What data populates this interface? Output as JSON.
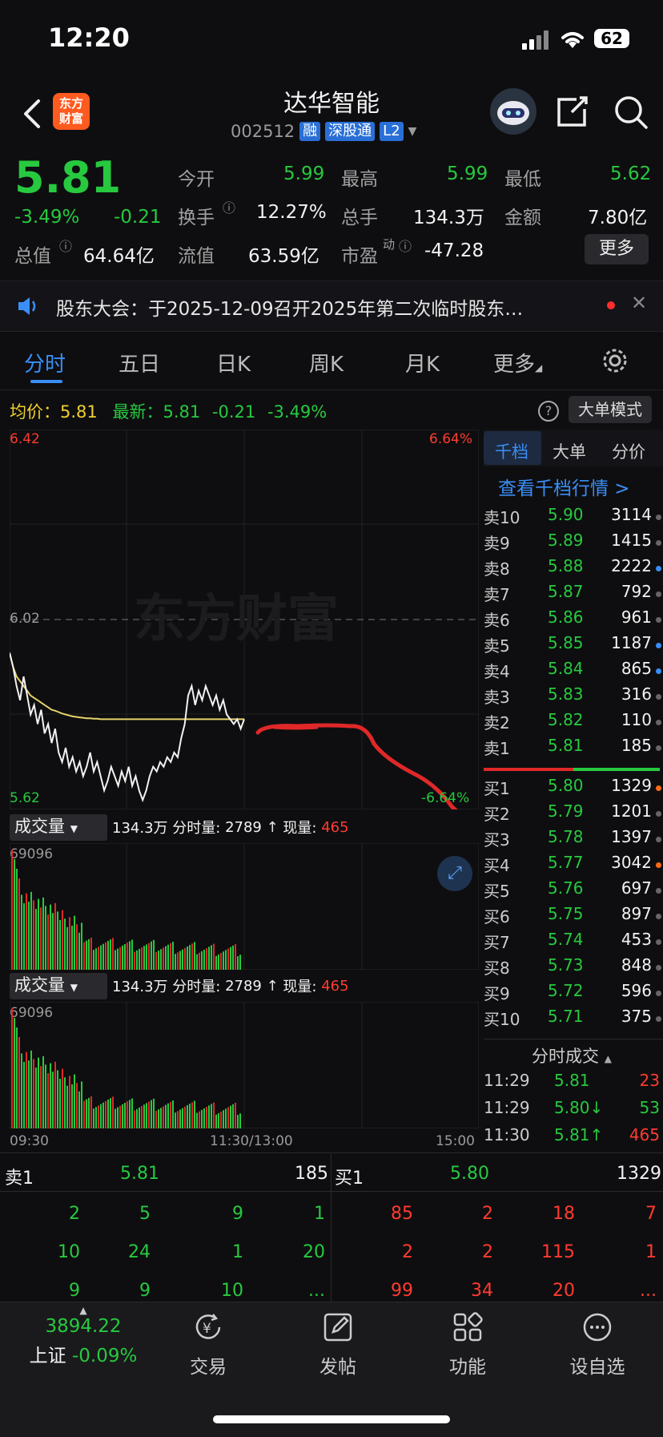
{
  "status": {
    "time": "12:20",
    "battery": "62"
  },
  "header": {
    "name": "达华智能",
    "code": "002512",
    "tags": [
      "融",
      "深股通",
      "L2"
    ],
    "logo_line1": "东方",
    "logo_line2": "财富"
  },
  "quote": {
    "price": "5.81",
    "change_pct": "-3.49%",
    "change": "-0.21",
    "open_label": "今开",
    "open": "5.99",
    "high_label": "最高",
    "high": "5.99",
    "low_label": "最低",
    "low": "5.62",
    "turnover_label": "换手",
    "turnover": "12.27%",
    "volume_label": "总手",
    "volume": "134.3万",
    "amount_label": "金额",
    "amount": "7.80亿",
    "mktcap_label": "总值",
    "mktcap": "64.64亿",
    "float_label": "流值",
    "float": "63.59亿",
    "pe_label": "市盈",
    "pe_sup": "动",
    "pe": "-47.28",
    "more": "更多"
  },
  "notice": {
    "text": "股东大会：于2025-12-09召开2025年第二次临时股东…"
  },
  "tabs": [
    "分时",
    "五日",
    "日K",
    "周K",
    "月K",
    "更多"
  ],
  "info": {
    "avg_label": "均价：",
    "avg": "5.81",
    "last_label": "最新：",
    "last": "5.81",
    "chg": "-0.21",
    "pct": "-3.49%",
    "mode_button": "大单模式"
  },
  "chart_data": {
    "type": "line",
    "title": "",
    "y_top": "6.42",
    "y_mid": "6.02",
    "y_bottom": "5.62",
    "pct_top": "6.64%",
    "pct_bottom": "-6.64%",
    "watermark": "东方财富",
    "x_labels": [
      "09:30",
      "11:30/13:00",
      "15:00"
    ],
    "ylim": [
      5.62,
      6.42
    ],
    "price": [
      5.95,
      5.92,
      5.88,
      5.85,
      5.9,
      5.86,
      5.82,
      5.84,
      5.8,
      5.83,
      5.78,
      5.8,
      5.76,
      5.79,
      5.74,
      5.72,
      5.75,
      5.71,
      5.73,
      5.7,
      5.72,
      5.69,
      5.71,
      5.74,
      5.7,
      5.72,
      5.69,
      5.66,
      5.68,
      5.71,
      5.69,
      5.67,
      5.7,
      5.68,
      5.71,
      5.67,
      5.69,
      5.66,
      5.64,
      5.66,
      5.69,
      5.71,
      5.7,
      5.72,
      5.71,
      5.73,
      5.72,
      5.74,
      5.73,
      5.77,
      5.8,
      5.86,
      5.88,
      5.84,
      5.87,
      5.85,
      5.88,
      5.86,
      5.84,
      5.86,
      5.83,
      5.85,
      5.82,
      5.81,
      5.8,
      5.81,
      5.79,
      5.81
    ],
    "average": [
      5.95,
      5.92,
      5.9,
      5.89,
      5.88,
      5.87,
      5.86,
      5.855,
      5.85,
      5.845,
      5.84,
      5.835,
      5.83,
      5.828,
      5.825,
      5.822,
      5.82,
      5.818,
      5.816,
      5.815,
      5.814,
      5.813,
      5.812,
      5.812,
      5.811,
      5.811,
      5.81,
      5.81,
      5.81,
      5.81,
      5.81,
      5.81,
      5.81,
      5.81,
      5.81,
      5.81,
      5.81,
      5.81,
      5.81,
      5.81,
      5.81,
      5.81,
      5.81,
      5.81,
      5.81,
      5.81,
      5.81,
      5.81,
      5.81,
      5.81,
      5.81,
      5.81,
      5.81,
      5.81,
      5.81,
      5.81,
      5.81,
      5.81,
      5.81,
      5.81,
      5.81,
      5.81,
      5.81,
      5.81,
      5.81,
      5.81,
      5.81,
      5.81
    ],
    "volume_max": "69096"
  },
  "volume_panel": {
    "selector": "成交量",
    "total": "134.3万",
    "minute_label": "分时量:",
    "minute": "2789",
    "now_label": "现量:",
    "now": "465"
  },
  "orderbook": {
    "tabs": [
      "千档",
      "大单",
      "分价"
    ],
    "link": "查看千档行情 >",
    "asks": [
      {
        "label": "卖10",
        "price": "5.90",
        "vol": "3114",
        "dot": "#666"
      },
      {
        "label": "卖9",
        "price": "5.89",
        "vol": "1415",
        "dot": "#666"
      },
      {
        "label": "卖8",
        "price": "5.88",
        "vol": "2222",
        "dot": "#3a8ef6"
      },
      {
        "label": "卖7",
        "price": "5.87",
        "vol": "792",
        "dot": "#666"
      },
      {
        "label": "卖6",
        "price": "5.86",
        "vol": "961",
        "dot": "#666"
      },
      {
        "label": "卖5",
        "price": "5.85",
        "vol": "1187",
        "dot": "#3a8ef6"
      },
      {
        "label": "卖4",
        "price": "5.84",
        "vol": "865",
        "dot": "#3a8ef6"
      },
      {
        "label": "卖3",
        "price": "5.83",
        "vol": "316",
        "dot": "#666"
      },
      {
        "label": "卖2",
        "price": "5.82",
        "vol": "110",
        "dot": "#666"
      },
      {
        "label": "卖1",
        "price": "5.81",
        "vol": "185",
        "dot": "#666"
      }
    ],
    "bids": [
      {
        "label": "买1",
        "price": "5.80",
        "vol": "1329",
        "dot": "#ff6a1a"
      },
      {
        "label": "买2",
        "price": "5.79",
        "vol": "1201",
        "dot": "#666"
      },
      {
        "label": "买3",
        "price": "5.78",
        "vol": "1397",
        "dot": "#666"
      },
      {
        "label": "买4",
        "price": "5.77",
        "vol": "3042",
        "dot": "#ff6a1a"
      },
      {
        "label": "买5",
        "price": "5.76",
        "vol": "697",
        "dot": "#666"
      },
      {
        "label": "买6",
        "price": "5.75",
        "vol": "897",
        "dot": "#666"
      },
      {
        "label": "买7",
        "price": "5.74",
        "vol": "453",
        "dot": "#666"
      },
      {
        "label": "买8",
        "price": "5.73",
        "vol": "848",
        "dot": "#666"
      },
      {
        "label": "买9",
        "price": "5.72",
        "vol": "596",
        "dot": "#666"
      },
      {
        "label": "买10",
        "price": "5.71",
        "vol": "375",
        "dot": "#666"
      }
    ]
  },
  "trades": {
    "title": "分时成交",
    "rows": [
      {
        "time": "11:29",
        "price": "5.81",
        "arrow": "",
        "vol": "23",
        "pcolor": "#27c93f",
        "vcolor": "#ff3b30"
      },
      {
        "time": "11:29",
        "price": "5.80↓",
        "arrow": "",
        "vol": "53",
        "pcolor": "#27c93f",
        "vcolor": "#27c93f"
      },
      {
        "time": "11:30",
        "price": "5.81↑",
        "arrow": "",
        "vol": "465",
        "pcolor": "#27c93f",
        "vcolor": "#ff3b30"
      }
    ]
  },
  "strip": {
    "sell_label": "卖1",
    "sell_price": "5.81",
    "sell_vol": "185",
    "buy_label": "买1",
    "buy_price": "5.80",
    "buy_vol": "1329",
    "sell_grid": [
      [
        "2",
        "5",
        "9",
        "1"
      ],
      [
        "10",
        "24",
        "1",
        "20"
      ],
      [
        "9",
        "9",
        "10",
        "..."
      ]
    ],
    "buy_grid": [
      [
        "85",
        "2",
        "18",
        "7"
      ],
      [
        "2",
        "2",
        "115",
        "1"
      ],
      [
        "99",
        "34",
        "20",
        "..."
      ]
    ]
  },
  "nav": {
    "index_value": "3894.22",
    "index_name": "上证",
    "index_pct": "-0.09%",
    "items": [
      "交易",
      "发帖",
      "功能",
      "设自选"
    ]
  }
}
